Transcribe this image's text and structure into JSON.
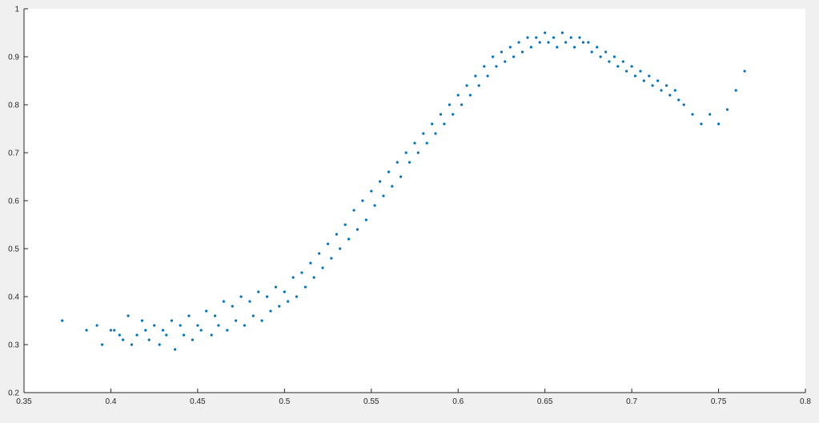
{
  "colors": {
    "figure_bg": "#f0f0f0",
    "axes_bg": "#ffffff",
    "axis": "#262626",
    "marker": "#0072bd"
  },
  "chart_data": {
    "type": "scatter",
    "title": "",
    "xlabel": "",
    "ylabel": "",
    "xlim": [
      0.35,
      0.8
    ],
    "ylim": [
      0.2,
      1.0
    ],
    "grid": false,
    "legend": "none",
    "xticks": [
      0.35,
      0.4,
      0.45,
      0.5,
      0.55,
      0.6,
      0.65,
      0.7,
      0.75,
      0.8
    ],
    "xtick_labels": [
      "0.35",
      "0.4",
      "0.45",
      "0.5",
      "0.55",
      "0.6",
      "0.65",
      "0.7",
      "0.75",
      "0.8"
    ],
    "yticks": [
      0.2,
      0.3,
      0.4,
      0.5,
      0.6,
      0.7,
      0.8,
      0.9,
      1.0
    ],
    "ytick_labels": [
      "0.2",
      "0.3",
      "0.4",
      "0.5",
      "0.6",
      "0.7",
      "0.8",
      "0.9",
      "1"
    ],
    "series": [
      {
        "x": [
          0.372,
          0.386,
          0.392,
          0.395,
          0.4,
          0.402,
          0.405,
          0.407,
          0.41,
          0.412,
          0.415,
          0.418,
          0.42,
          0.422,
          0.425,
          0.428,
          0.43,
          0.432,
          0.435,
          0.437,
          0.44,
          0.442,
          0.445,
          0.447,
          0.45,
          0.452,
          0.455,
          0.458,
          0.46,
          0.462,
          0.465,
          0.467,
          0.47,
          0.472,
          0.475,
          0.477,
          0.48,
          0.482,
          0.485,
          0.487,
          0.49,
          0.492,
          0.495,
          0.497,
          0.5,
          0.502,
          0.505,
          0.507,
          0.51,
          0.512,
          0.515,
          0.517,
          0.52,
          0.522,
          0.525,
          0.527,
          0.53,
          0.532,
          0.535,
          0.537,
          0.54,
          0.542,
          0.545,
          0.547,
          0.55,
          0.552,
          0.555,
          0.557,
          0.56,
          0.562,
          0.565,
          0.567,
          0.57,
          0.572,
          0.575,
          0.577,
          0.58,
          0.582,
          0.585,
          0.587,
          0.59,
          0.592,
          0.595,
          0.597,
          0.6,
          0.602,
          0.605,
          0.607,
          0.61,
          0.612,
          0.615,
          0.617,
          0.62,
          0.622,
          0.625,
          0.627,
          0.63,
          0.632,
          0.635,
          0.637,
          0.64,
          0.642,
          0.645,
          0.647,
          0.65,
          0.652,
          0.655,
          0.657,
          0.66,
          0.662,
          0.665,
          0.667,
          0.67,
          0.672,
          0.675,
          0.677,
          0.68,
          0.682,
          0.685,
          0.687,
          0.69,
          0.692,
          0.695,
          0.697,
          0.7,
          0.702,
          0.705,
          0.707,
          0.71,
          0.712,
          0.715,
          0.717,
          0.72,
          0.722,
          0.725,
          0.727,
          0.73,
          0.735,
          0.74,
          0.745,
          0.75,
          0.755,
          0.76,
          0.765
        ],
        "y": [
          0.35,
          0.33,
          0.34,
          0.3,
          0.33,
          0.33,
          0.32,
          0.31,
          0.36,
          0.3,
          0.32,
          0.35,
          0.33,
          0.31,
          0.34,
          0.3,
          0.33,
          0.32,
          0.35,
          0.29,
          0.34,
          0.32,
          0.36,
          0.31,
          0.34,
          0.33,
          0.37,
          0.32,
          0.36,
          0.34,
          0.39,
          0.33,
          0.38,
          0.35,
          0.4,
          0.34,
          0.39,
          0.36,
          0.41,
          0.35,
          0.4,
          0.37,
          0.42,
          0.38,
          0.41,
          0.39,
          0.44,
          0.4,
          0.45,
          0.42,
          0.47,
          0.44,
          0.49,
          0.46,
          0.51,
          0.48,
          0.53,
          0.5,
          0.55,
          0.52,
          0.58,
          0.54,
          0.6,
          0.56,
          0.62,
          0.59,
          0.64,
          0.61,
          0.66,
          0.63,
          0.68,
          0.65,
          0.7,
          0.68,
          0.72,
          0.7,
          0.74,
          0.72,
          0.76,
          0.74,
          0.78,
          0.76,
          0.8,
          0.78,
          0.82,
          0.8,
          0.84,
          0.82,
          0.86,
          0.84,
          0.88,
          0.86,
          0.9,
          0.88,
          0.91,
          0.89,
          0.92,
          0.9,
          0.93,
          0.91,
          0.94,
          0.92,
          0.94,
          0.93,
          0.95,
          0.93,
          0.94,
          0.92,
          0.95,
          0.93,
          0.94,
          0.92,
          0.94,
          0.93,
          0.93,
          0.91,
          0.92,
          0.9,
          0.91,
          0.89,
          0.9,
          0.88,
          0.89,
          0.87,
          0.88,
          0.86,
          0.87,
          0.85,
          0.86,
          0.84,
          0.85,
          0.83,
          0.84,
          0.82,
          0.83,
          0.81,
          0.8,
          0.78,
          0.76,
          0.78,
          0.76,
          0.79,
          0.83,
          0.87
        ]
      }
    ]
  }
}
